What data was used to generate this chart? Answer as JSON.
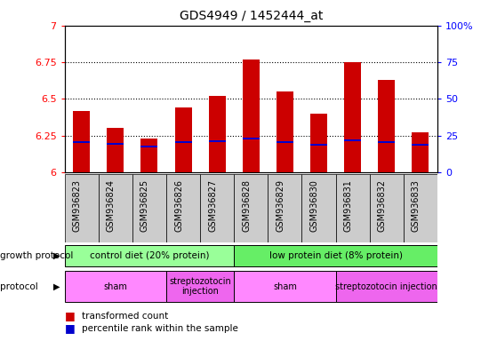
{
  "title": "GDS4949 / 1452444_at",
  "samples": [
    "GSM936823",
    "GSM936824",
    "GSM936825",
    "GSM936826",
    "GSM936827",
    "GSM936828",
    "GSM936829",
    "GSM936830",
    "GSM936831",
    "GSM936832",
    "GSM936833"
  ],
  "transformed_count": [
    6.42,
    6.3,
    6.23,
    6.44,
    6.52,
    6.77,
    6.55,
    6.4,
    6.75,
    6.63,
    6.27
  ],
  "percentile_rank": [
    0.205,
    0.195,
    0.175,
    0.205,
    0.21,
    0.23,
    0.205,
    0.19,
    0.22,
    0.205,
    0.185
  ],
  "ymin": 6.0,
  "ymax": 7.0,
  "bar_color": "#cc0000",
  "blue_color": "#0000cc",
  "bar_base": 6.0,
  "growth_protocol_groups": [
    {
      "label": "control diet (20% protein)",
      "start": 0,
      "end": 4,
      "color": "#99ff99"
    },
    {
      "label": "low protein diet (8% protein)",
      "start": 5,
      "end": 10,
      "color": "#66ee66"
    }
  ],
  "protocol_groups": [
    {
      "label": "sham",
      "start": 0,
      "end": 2,
      "color": "#ff88ff"
    },
    {
      "label": "streptozotocin\ninjection",
      "start": 3,
      "end": 4,
      "color": "#ee66ee"
    },
    {
      "label": "sham",
      "start": 5,
      "end": 7,
      "color": "#ff88ff"
    },
    {
      "label": "streptozotocin injection",
      "start": 8,
      "end": 10,
      "color": "#ee66ee"
    }
  ],
  "legend_items": [
    {
      "color": "#cc0000",
      "label": "transformed count"
    },
    {
      "color": "#0000cc",
      "label": "percentile rank within the sample"
    }
  ],
  "right_axis_ticks": [
    0,
    25,
    50,
    75,
    100
  ],
  "right_axis_labels": [
    "0",
    "25",
    "50",
    "75",
    "100%"
  ],
  "left_axis_ticks": [
    6.0,
    6.25,
    6.5,
    6.75,
    7.0
  ],
  "left_axis_labels": [
    "6",
    "6.25",
    "6.5",
    "6.75",
    "7"
  ],
  "dotted_lines": [
    6.25,
    6.5,
    6.75
  ],
  "xticklabel_bg": "#cccccc",
  "spine_color": "#000000",
  "bar_width": 0.5,
  "blue_bar_height": 0.012
}
